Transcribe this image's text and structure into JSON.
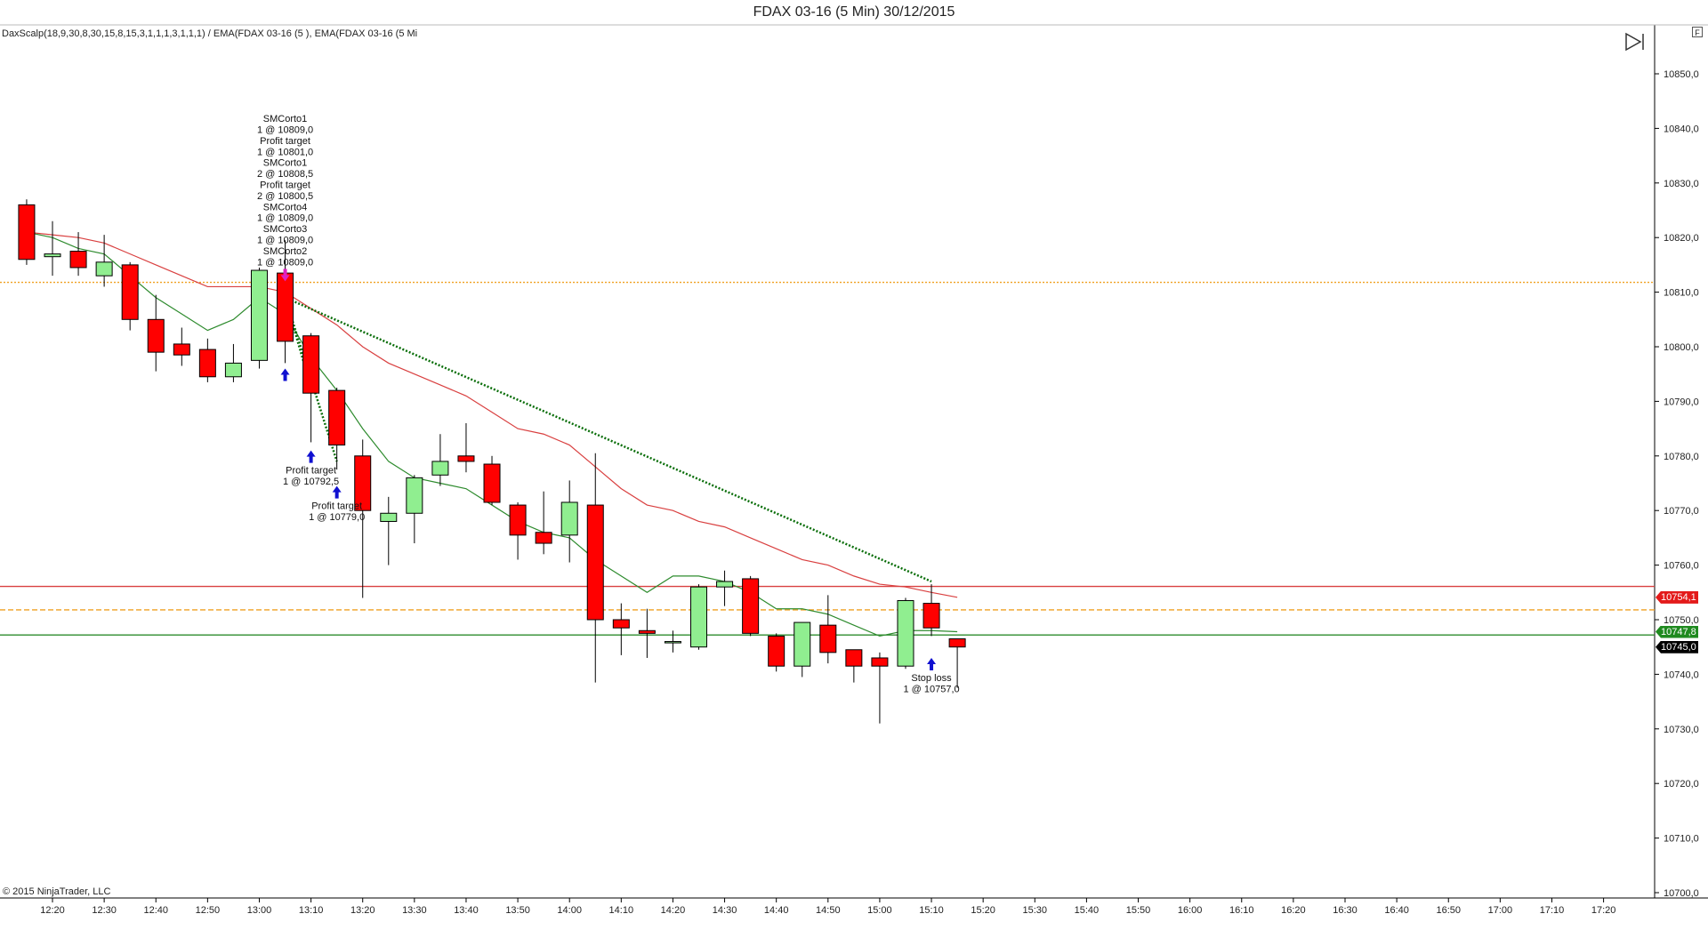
{
  "window": {
    "title": "FDAX 03-16 (5 Min)  30/12/2015"
  },
  "indicator_label": "DaxScalp(18,9,30,8,30,15,8,15,3,1,1,1,3,1,1,1) / EMA(FDAX 03-16 (5 ), EMA(FDAX 03-16 (5 Mi",
  "copyright": "© 2015 NinjaTrader, LLC",
  "side_button": "F",
  "price_tags": [
    {
      "label": "10754,1",
      "value": 10754.1,
      "color": "#e31a1a"
    },
    {
      "label": "10747,8",
      "value": 10747.8,
      "color": "#1f8a1f"
    },
    {
      "label": "10745,0",
      "value": 10745.0,
      "color": "#000000"
    }
  ],
  "chart_data": {
    "type": "candlestick",
    "ylim": [
      10700,
      10855
    ],
    "y_ticks": [
      10700,
      10710,
      10720,
      10730,
      10740,
      10750,
      10760,
      10770,
      10780,
      10790,
      10800,
      10810,
      10820,
      10830,
      10840,
      10850
    ],
    "y_tick_labels": [
      "10700,0",
      "10710,0",
      "10720,0",
      "10730,0",
      "10740,0",
      "10750,0",
      "10760,0",
      "10770,0",
      "10780,0",
      "10790,0",
      "10800,0",
      "10810,0",
      "10820,0",
      "10830,0",
      "10840,0",
      "10850,0"
    ],
    "x_ticks": [
      "12:20",
      "12:30",
      "12:40",
      "12:50",
      "13:00",
      "13:10",
      "13:20",
      "13:30",
      "13:40",
      "13:50",
      "14:00",
      "14:10",
      "14:20",
      "14:30",
      "14:40",
      "14:50",
      "15:00",
      "15:10",
      "15:20",
      "15:30",
      "15:40",
      "15:50",
      "16:00",
      "16:10",
      "16:20",
      "16:30",
      "16:40",
      "16:50",
      "17:00",
      "17:10",
      "17:20"
    ],
    "candles": [
      {
        "t": "12:15",
        "o": 10826,
        "h": 10827,
        "l": 10815,
        "c": 10816
      },
      {
        "t": "12:20",
        "o": 10816.5,
        "h": 10823,
        "l": 10813,
        "c": 10817
      },
      {
        "t": "12:25",
        "o": 10817.5,
        "h": 10821,
        "l": 10813,
        "c": 10814.5
      },
      {
        "t": "12:30",
        "o": 10813,
        "h": 10820.5,
        "l": 10811,
        "c": 10815.5
      },
      {
        "t": "12:35",
        "o": 10815,
        "h": 10815.5,
        "l": 10803,
        "c": 10805
      },
      {
        "t": "12:40",
        "o": 10805,
        "h": 10809.5,
        "l": 10795.5,
        "c": 10799
      },
      {
        "t": "12:45",
        "o": 10800.5,
        "h": 10803.5,
        "l": 10796.5,
        "c": 10798.5
      },
      {
        "t": "12:50",
        "o": 10799.5,
        "h": 10801.5,
        "l": 10793.5,
        "c": 10794.5
      },
      {
        "t": "12:55",
        "o": 10794.5,
        "h": 10800.5,
        "l": 10793.5,
        "c": 10797
      },
      {
        "t": "13:00",
        "o": 10797.5,
        "h": 10814.5,
        "l": 10796,
        "c": 10814
      },
      {
        "t": "13:05",
        "o": 10813.5,
        "h": 10819.5,
        "l": 10797,
        "c": 10801
      },
      {
        "t": "13:10",
        "o": 10802,
        "h": 10802.5,
        "l": 10782.5,
        "c": 10791.5
      },
      {
        "t": "13:15",
        "o": 10792,
        "h": 10792.5,
        "l": 10777.5,
        "c": 10782
      },
      {
        "t": "13:20",
        "o": 10780,
        "h": 10783,
        "l": 10754,
        "c": 10770
      },
      {
        "t": "13:25",
        "o": 10768,
        "h": 10772.5,
        "l": 10760,
        "c": 10769.5
      },
      {
        "t": "13:30",
        "o": 10769.5,
        "h": 10776.5,
        "l": 10764,
        "c": 10776
      },
      {
        "t": "13:35",
        "o": 10776.5,
        "h": 10784,
        "l": 10774.5,
        "c": 10779
      },
      {
        "t": "13:40",
        "o": 10780,
        "h": 10786,
        "l": 10777,
        "c": 10779
      },
      {
        "t": "13:45",
        "o": 10778.5,
        "h": 10780,
        "l": 10771,
        "c": 10771.5
      },
      {
        "t": "13:50",
        "o": 10771,
        "h": 10771.5,
        "l": 10761,
        "c": 10765.5
      },
      {
        "t": "13:55",
        "o": 10766,
        "h": 10773.5,
        "l": 10762,
        "c": 10764
      },
      {
        "t": "14:00",
        "o": 10765.5,
        "h": 10775.5,
        "l": 10760.5,
        "c": 10771.5
      },
      {
        "t": "14:05",
        "o": 10771,
        "h": 10780.5,
        "l": 10738.5,
        "c": 10750
      },
      {
        "t": "14:10",
        "o": 10750,
        "h": 10753,
        "l": 10743.5,
        "c": 10748.5
      },
      {
        "t": "14:15",
        "o": 10748,
        "h": 10752,
        "l": 10743,
        "c": 10747.5
      },
      {
        "t": "14:20",
        "o": 10746,
        "h": 10748,
        "l": 10744,
        "c": 10746
      },
      {
        "t": "14:25",
        "o": 10745,
        "h": 10756.5,
        "l": 10744.5,
        "c": 10756
      },
      {
        "t": "14:30",
        "o": 10756,
        "h": 10759,
        "l": 10752.5,
        "c": 10757
      },
      {
        "t": "14:35",
        "o": 10757.5,
        "h": 10758,
        "l": 10747,
        "c": 10747.5
      },
      {
        "t": "14:40",
        "o": 10747,
        "h": 10747.5,
        "l": 10740.5,
        "c": 10741.5
      },
      {
        "t": "14:45",
        "o": 10741.5,
        "h": 10749.5,
        "l": 10739.5,
        "c": 10749.5
      },
      {
        "t": "14:50",
        "o": 10749,
        "h": 10754.5,
        "l": 10742,
        "c": 10744
      },
      {
        "t": "14:55",
        "o": 10744.5,
        "h": 10744.5,
        "l": 10738.5,
        "c": 10741.5
      },
      {
        "t": "15:00",
        "o": 10743,
        "h": 10744,
        "l": 10731,
        "c": 10741.5
      },
      {
        "t": "15:05",
        "o": 10741.5,
        "h": 10754,
        "l": 10741,
        "c": 10753.5
      },
      {
        "t": "15:10",
        "o": 10753,
        "h": 10756.5,
        "l": 10747,
        "c": 10748.5
      },
      {
        "t": "15:15",
        "o": 10746.5,
        "h": 10746.5,
        "l": 10737.5,
        "c": 10745
      }
    ],
    "ema_fast": {
      "color": "#2e8b2e",
      "values": [
        10821,
        10820,
        10818,
        10817,
        10813,
        10809,
        10806,
        10803,
        10805,
        10809,
        10806,
        10798,
        10792,
        10785,
        10779,
        10776,
        10775,
        10774,
        10771,
        10768,
        10766,
        10765,
        10761,
        10758,
        10755,
        10758,
        10758,
        10757,
        10755,
        10752,
        10752,
        10751,
        10749,
        10747,
        10748,
        10748,
        10747.8
      ]
    },
    "ema_slow": {
      "color": "#d94040",
      "values": [
        10821,
        10820.5,
        10820,
        10819,
        10817,
        10815,
        10813,
        10811,
        10811,
        10811,
        10810,
        10807,
        10804,
        10800,
        10797,
        10795,
        10793,
        10791,
        10788,
        10785,
        10784,
        10782,
        10778,
        10774,
        10771,
        10770,
        10768,
        10767,
        10765,
        10763,
        10761,
        10760,
        10758,
        10756.5,
        10756,
        10755,
        10754.1
      ]
    },
    "hlines": [
      {
        "value": 10811.8,
        "color": "#f0a020",
        "style": "dotted"
      },
      {
        "value": 10756.1,
        "color": "#d94040",
        "style": "solid"
      },
      {
        "value": 10751.8,
        "color": "#f0a020",
        "style": "dashed"
      },
      {
        "value": 10747.2,
        "color": "#2e8b2e",
        "style": "solid"
      }
    ],
    "trade_lines": [
      {
        "from_t": "13:05",
        "from_v": 10809,
        "to_t": "15:10",
        "to_v": 10757
      },
      {
        "from_t": "13:05",
        "from_v": 10809,
        "to_t": "13:10",
        "to_v": 10792.5
      },
      {
        "from_t": "13:05",
        "from_v": 10809,
        "to_t": "13:15",
        "to_v": 10779
      }
    ],
    "annotations": [
      {
        "t": "13:05",
        "value": 10812,
        "arrow": "down",
        "color": "#e020c0",
        "position": "above",
        "lines": [
          "SMCorto1",
          "1 @ 10809,0",
          "Profit target",
          "1 @ 10801,0",
          "SMCorto1",
          "2 @ 10808,5",
          "Profit target",
          "2 @ 10800,5",
          "SMCorto4",
          "1 @ 10809,0",
          "SMCorto3",
          "1 @ 10809,0",
          "SMCorto2",
          "1 @ 10809,0"
        ]
      },
      {
        "t": "13:05",
        "value": 10796,
        "arrow": "up",
        "color": "#1010d0",
        "position": "below",
        "lines": []
      },
      {
        "t": "13:10",
        "value": 10781,
        "arrow": "up",
        "color": "#1010d0",
        "position": "below",
        "lines": [
          "Profit target",
          "1 @ 10792,5"
        ]
      },
      {
        "t": "13:15",
        "value": 10774.5,
        "arrow": "up",
        "color": "#1010d0",
        "position": "below",
        "lines": [
          "Profit target",
          "1 @ 10779,0"
        ]
      },
      {
        "t": "15:10",
        "value": 10743,
        "arrow": "up",
        "color": "#1010d0",
        "position": "below",
        "lines": [
          "Stop loss",
          "1 @ 10757,0"
        ]
      }
    ]
  }
}
